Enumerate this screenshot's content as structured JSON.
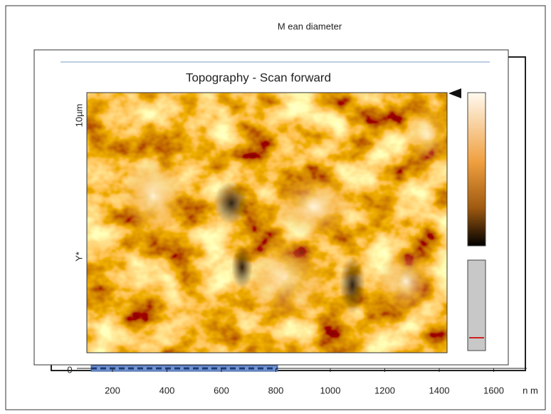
{
  "header": {
    "title": "M ean diameter"
  },
  "panel": {
    "title": "Topography - Scan forward",
    "y_top_label": "10µm",
    "y_axis_label": "Y*"
  },
  "axis": {
    "zero_label": "0",
    "ticks": [
      200,
      400,
      600,
      800,
      1000,
      1200,
      1400,
      1600
    ],
    "unit": "n m"
  }
}
